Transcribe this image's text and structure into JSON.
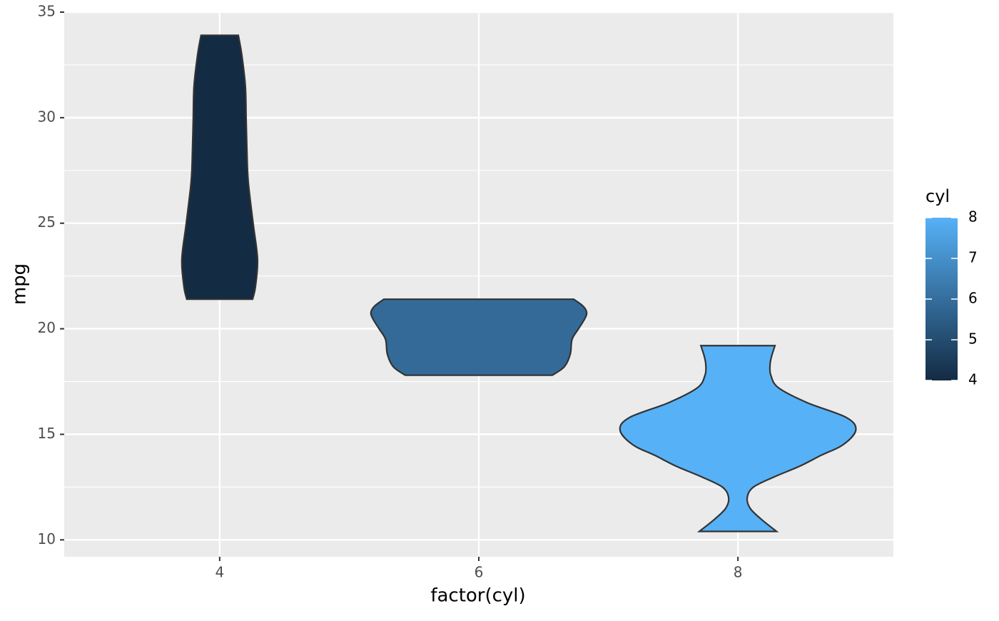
{
  "chart_data": {
    "type": "violin",
    "x_label": "factor(cyl)",
    "y_label": "mpg",
    "categories": [
      "4",
      "6",
      "8"
    ],
    "ylim": [
      9.2,
      35
    ],
    "yticks": [
      10,
      15,
      20,
      25,
      30,
      35
    ],
    "yminor": [
      12.5,
      17.5,
      22.5,
      27.5,
      32.5
    ],
    "grid": true,
    "series": [
      {
        "name": "4",
        "color": "#132B43",
        "y": [
          21.4,
          22,
          23.3,
          25,
          27,
          28.5,
          30,
          31.5,
          33,
          33.9
        ],
        "width": [
          0.127,
          0.138,
          0.146,
          0.129,
          0.11,
          0.105,
          0.102,
          0.099,
          0.085,
          0.072
        ]
      },
      {
        "name": "6",
        "color": "#336A98",
        "y": [
          17.8,
          18.2,
          18.8,
          19.5,
          20,
          20.5,
          20.8,
          21.1,
          21.4
        ],
        "width": [
          0.284,
          0.33,
          0.353,
          0.36,
          0.385,
          0.41,
          0.416,
          0.4,
          0.366
        ]
      },
      {
        "name": "8",
        "color": "#56B1F7",
        "y": [
          10.4,
          11,
          11.5,
          12,
          12.5,
          13,
          13.5,
          14,
          14.5,
          15.2,
          15.8,
          16.5,
          17.2,
          17.8,
          18.3,
          18.7,
          19.2
        ],
        "width": [
          0.149,
          0.088,
          0.047,
          0.036,
          0.06,
          0.143,
          0.24,
          0.32,
          0.405,
          0.455,
          0.418,
          0.267,
          0.157,
          0.127,
          0.124,
          0.13,
          0.143
        ]
      }
    ],
    "legend": {
      "title": "cyl",
      "lim": [
        4,
        8
      ],
      "ticks": [
        4,
        5,
        6,
        7,
        8
      ],
      "colors": [
        "#132B43",
        "#56B1F7"
      ]
    }
  }
}
